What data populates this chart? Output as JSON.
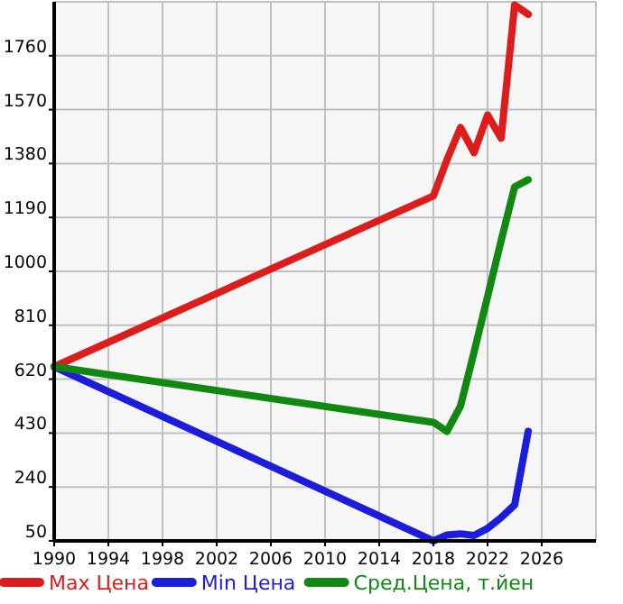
{
  "chart_data": {
    "type": "line",
    "x": [
      1990,
      2018,
      2019,
      2020,
      2021,
      2022,
      2023,
      2024,
      2025
    ],
    "series": [
      {
        "name": "Max Цена",
        "color": "#dd1c1c",
        "values": [
          664,
          1266,
          1393,
          1507,
          1418,
          1551,
          1469,
          1939,
          1906
        ]
      },
      {
        "name": "Min Цена",
        "color": "#1c1cdd",
        "values": [
          664,
          50,
          71,
          75,
          69,
          94,
          132,
          177,
          436
        ]
      },
      {
        "name": "Сред.Цена, т.йен",
        "color": "#118811",
        "values": [
          664,
          468,
          436,
          525,
          715,
          911,
          1108,
          1298,
          1323
        ]
      }
    ],
    "xlim": [
      1990,
      2030
    ],
    "xticks": [
      1990,
      1994,
      1998,
      2002,
      2006,
      2010,
      2014,
      2018,
      2022,
      2026
    ],
    "ylim": [
      50,
      1950
    ],
    "yticks": [
      50,
      240,
      430,
      620,
      810,
      1000,
      1190,
      1380,
      1570,
      1760
    ],
    "grid": true,
    "legend": "bottom",
    "marker": "none",
    "line_style": "solid"
  }
}
